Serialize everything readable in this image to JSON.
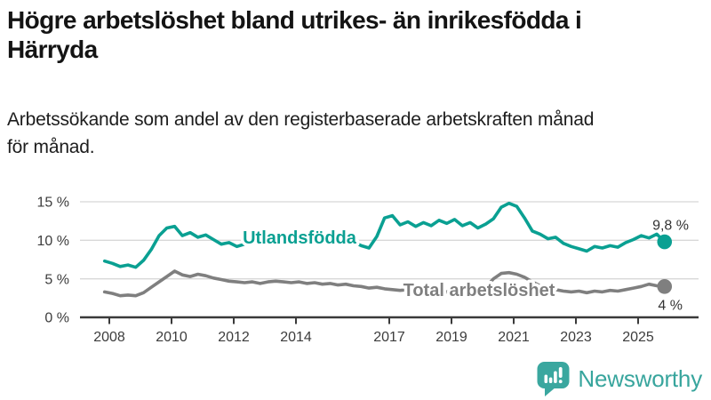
{
  "title_lines": [
    "Högre arbetslöshet bland utrikes- än inrikesfödda i",
    "Härryda"
  ],
  "subtitle_lines": [
    "Arbetssökande som andel av den registerbaserade arbetskraften månad",
    "för månad."
  ],
  "footer": {
    "brand": "Newsworthy",
    "logo_icon": "bar-chart-speech-bubble-icon",
    "brand_color": "#38a59d"
  },
  "colors": {
    "foreign_born_line": "#0aa092",
    "total_line": "#7f7f7f",
    "axis_text": "#3c3c3c",
    "gridline": "#d8d8d8",
    "axis_line": "#3a3a3a",
    "value_label": "#333333"
  },
  "chart_data": {
    "type": "line",
    "title": "Högre arbetslöshet bland utrikes- än inrikesfödda i Härryda",
    "subtitle": "Arbetssökande som andel av den registerbaserade arbetskraften månad för månad.",
    "xlabel": "",
    "ylabel": "",
    "x_start": 2007.85,
    "x_end": 2025.85,
    "x_ticks": [
      2008,
      2010,
      2012,
      2014,
      2017,
      2019,
      2021,
      2023,
      2025
    ],
    "ylim": [
      0,
      15
    ],
    "y_tick_values": [
      0,
      5,
      10,
      15
    ],
    "y_tick_labels": [
      "0 %",
      "5 %",
      "10 %",
      "15 %"
    ],
    "grid": true,
    "legend_position": "inline-labels",
    "series": [
      {
        "name": "Utlandsfödda",
        "color": "#0aa092",
        "end_value": 9.8,
        "end_label": "9,8 %",
        "values": [
          7.3,
          7.0,
          6.6,
          6.8,
          6.5,
          7.4,
          8.8,
          10.6,
          11.6,
          11.8,
          10.6,
          11.0,
          10.4,
          10.7,
          10.1,
          9.5,
          9.7,
          9.2,
          9.5,
          9.6,
          9.8,
          9.9,
          10.1,
          9.9,
          9.7,
          9.8,
          10.0,
          9.8,
          9.6,
          9.8,
          9.9,
          9.7,
          9.8,
          9.3,
          9.0,
          10.5,
          12.9,
          13.2,
          12.0,
          12.4,
          11.8,
          12.3,
          11.9,
          12.6,
          12.2,
          12.7,
          11.9,
          12.3,
          11.6,
          12.1,
          12.8,
          14.3,
          14.8,
          14.4,
          12.9,
          11.2,
          10.8,
          10.2,
          10.4,
          9.6,
          9.2,
          8.9,
          8.6,
          9.2,
          9.0,
          9.3,
          9.1,
          9.7,
          10.1,
          10.6,
          10.3,
          10.8,
          9.8
        ]
      },
      {
        "name": "Total arbetslöshet",
        "color": "#7f7f7f",
        "end_value": 4.0,
        "end_label": "4 %",
        "values": [
          3.3,
          3.1,
          2.8,
          2.9,
          2.8,
          3.2,
          3.9,
          4.6,
          5.3,
          6.0,
          5.5,
          5.3,
          5.6,
          5.4,
          5.1,
          4.9,
          4.7,
          4.6,
          4.5,
          4.6,
          4.4,
          4.6,
          4.7,
          4.6,
          4.5,
          4.6,
          4.4,
          4.5,
          4.3,
          4.4,
          4.2,
          4.3,
          4.1,
          4.0,
          3.8,
          3.9,
          3.7,
          3.6,
          3.5,
          3.6,
          3.4,
          3.5,
          3.3,
          3.4,
          3.3,
          3.4,
          3.3,
          3.5,
          3.6,
          3.9,
          5.0,
          5.7,
          5.8,
          5.6,
          5.2,
          4.6,
          4.1,
          3.8,
          3.6,
          3.4,
          3.3,
          3.4,
          3.2,
          3.4,
          3.3,
          3.5,
          3.4,
          3.6,
          3.8,
          4.0,
          4.3,
          4.1,
          4.0
        ]
      }
    ]
  }
}
